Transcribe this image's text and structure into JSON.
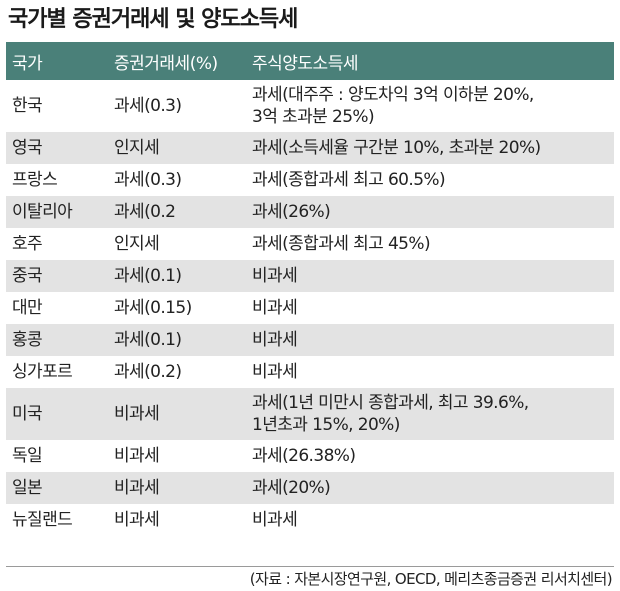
{
  "title": "국가별 증권거래세 및 양도소득세",
  "headers": [
    "국가",
    "증권거래세(%)",
    "주식양도소득세"
  ],
  "rows": [
    {
      "country": "한국",
      "transaction_tax": "과세(0.3)",
      "capital_gains_tax": [
        "과세(대주주 : 양도차익 3억 이하분 20%,",
        "3억 초과분 25%)"
      ]
    },
    {
      "country": "영국",
      "transaction_tax": "인지세",
      "capital_gains_tax": [
        "과세(소득세율 구간분 10%, 초과분 20%)"
      ]
    },
    {
      "country": "프랑스",
      "transaction_tax": "과세(0.3)",
      "capital_gains_tax": [
        "과세(종합과세 최고 60.5%)"
      ]
    },
    {
      "country": "이탈리아",
      "transaction_tax": "과세(0.2",
      "capital_gains_tax": [
        "과세(26%)"
      ]
    },
    {
      "country": "호주",
      "transaction_tax": "인지세",
      "capital_gains_tax": [
        "과세(종합과세 최고 45%)"
      ]
    },
    {
      "country": "중국",
      "transaction_tax": "과세(0.1)",
      "capital_gains_tax": [
        "비과세"
      ]
    },
    {
      "country": "대만",
      "transaction_tax": "과세(0.15)",
      "capital_gains_tax": [
        "비과세"
      ]
    },
    {
      "country": "홍콩",
      "transaction_tax": "과세(0.1)",
      "capital_gains_tax": [
        "비과세"
      ]
    },
    {
      "country": "싱가포르",
      "transaction_tax": "과세(0.2)",
      "capital_gains_tax": [
        "비과세"
      ]
    },
    {
      "country": "미국",
      "transaction_tax": "비과세",
      "capital_gains_tax": [
        "과세(1년 미만시 종합과세, 최고 39.6%,",
        "1년초과 15%, 20%)"
      ]
    },
    {
      "country": "독일",
      "transaction_tax": "비과세",
      "capital_gains_tax": [
        "과세(26.38%)"
      ]
    },
    {
      "country": "일본",
      "transaction_tax": "비과세",
      "capital_gains_tax": [
        "과세(20%)"
      ]
    },
    {
      "country": "뉴질랜드",
      "transaction_tax": "비과세",
      "capital_gains_tax": [
        "비과세"
      ]
    }
  ],
  "source": "(자료 : 자본시장연구원, OECD, 메리츠종금증권 리서치센터)"
}
